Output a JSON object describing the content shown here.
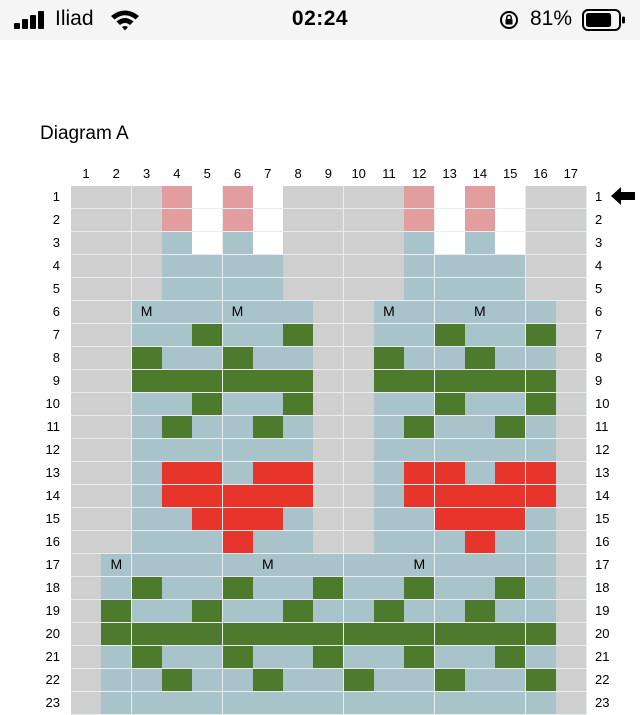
{
  "status_bar": {
    "carrier": "Iliad",
    "time": "02:24",
    "battery_percent": "81%",
    "battery_level": 0.81,
    "icons": [
      "signal-bars-icon",
      "wifi-icon",
      "orientation-lock-icon",
      "battery-icon"
    ]
  },
  "diagram": {
    "title": "Diagram A",
    "column_numbers": [
      "1",
      "2",
      "3",
      "4",
      "5",
      "6",
      "7",
      "8",
      "9",
      "10",
      "11",
      "12",
      "13",
      "14",
      "15",
      "16",
      "17"
    ],
    "row_numbers": [
      "1",
      "2",
      "3",
      "4",
      "5",
      "6",
      "7",
      "8",
      "9",
      "10",
      "11",
      "12",
      "13",
      "14",
      "15",
      "16",
      "17",
      "18",
      "19",
      "20",
      "21",
      "22",
      "23"
    ],
    "current_row_marker": "arrow-left-icon",
    "colors": {
      "G": "#cfcfcf",
      "B": "#a8c3c9",
      "D": "#4e7a2e",
      "R": "#e8352b",
      "P": "#e29e9f",
      "W": "#ffffff"
    },
    "marker_symbol": "M",
    "legend_codes": {
      "G": "gray",
      "B": "light blue",
      "D": "dark green",
      "R": "red",
      "P": "pink",
      "W": "white",
      "M": "M stitch on light blue"
    },
    "grid": [
      "GGGPWPWGGGGPWPWGG",
      "GGGPWPWGGGGPWPWGG",
      "GGGBWBWGGGGBWBWGG",
      "GGGBBBBGGGGBBBBGG",
      "GGGBBBBGGGGBBBBGG",
      "GGMBBMBBGGMBBMBBG",
      "GGBBDBBDGGBBDBBDG",
      "GGDBBDBBGGDBBDBBG",
      "GGDDDDDDGGDDDDDDG",
      "GGBBDBBDGGBBDBBDG",
      "GGBDBBDBGGBDBBDBG",
      "GGBBBBBBGGBBBBBBG",
      "GGBRRBRRGGBRRBRRG",
      "GGBRRRRRGGBRRRRRG",
      "GGBBRRRBGGBBRRRBG",
      "GGBBBRBBGGBBBRBBG",
      "GMBBBBMBBBBMBBBBG",
      "GBDBBDBBDBBDBBDBG",
      "GDBBDBBDBBDBBDBBG",
      "GDDDDDDDDDDDDDDDG",
      "GBDBBDBBDBBDBBDBG",
      "GBBDBBDBBDBBDBBDG",
      "GBBBBBBBBBBBBBBBG"
    ]
  }
}
